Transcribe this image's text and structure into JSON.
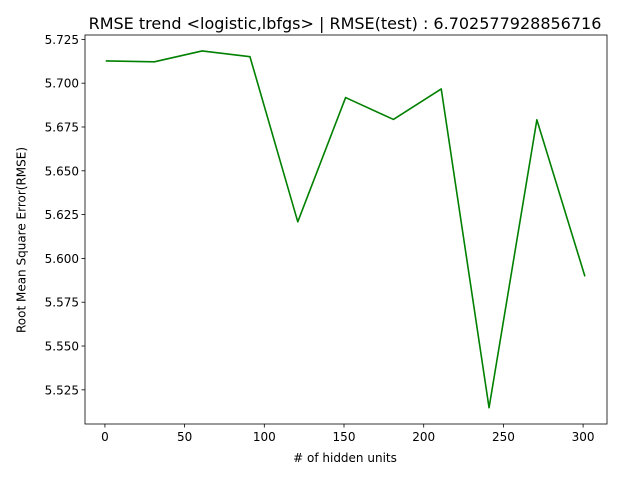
{
  "chart_data": {
    "type": "line",
    "title": "RMSE trend <logistic,lbfgs> | RMSE(test) : 6.702577928856716",
    "xlabel": "# of hidden units",
    "ylabel": "Root Mean Square Error(RMSE)",
    "xlim": [
      -12.5,
      315
    ],
    "ylim": [
      5.5055,
      5.7275
    ],
    "xticks": [
      0,
      50,
      100,
      150,
      200,
      250,
      300
    ],
    "xtick_labels": [
      "0",
      "50",
      "100",
      "150",
      "200",
      "250",
      "300"
    ],
    "yticks": [
      5.525,
      5.55,
      5.575,
      5.6,
      5.625,
      5.65,
      5.675,
      5.7,
      5.725
    ],
    "ytick_labels": [
      "5.525",
      "5.550",
      "5.575",
      "5.600",
      "5.625",
      "5.650",
      "5.675",
      "5.700",
      "5.725"
    ],
    "grid": false,
    "legend": false,
    "series": [
      {
        "color": "#008000",
        "x": [
          1,
          31,
          61,
          91,
          121,
          151,
          181,
          211,
          241,
          271,
          301
        ],
        "y": [
          5.7127,
          5.7122,
          5.7184,
          5.7151,
          5.6209,
          5.6918,
          5.6793,
          5.6967,
          5.5148,
          5.6791,
          5.5902
        ]
      }
    ]
  }
}
